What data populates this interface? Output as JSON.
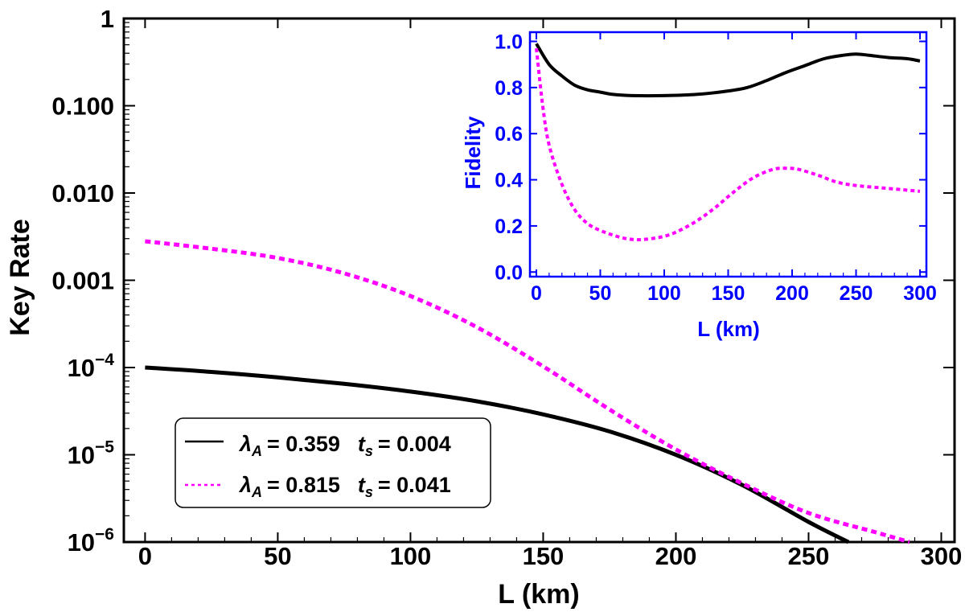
{
  "chart_data": [
    {
      "type": "line",
      "name": "main",
      "xlabel": "L (km)",
      "ylabel": "Key Rate",
      "yscale": "log",
      "xlim": [
        -8,
        305
      ],
      "ylim": [
        1e-06,
        1
      ],
      "x_ticks": [
        0,
        50,
        100,
        150,
        200,
        250,
        300
      ],
      "x_tick_labels": [
        "0",
        "50",
        "100",
        "150",
        "200",
        "250",
        "300"
      ],
      "y_ticks": [
        {
          "value": 1,
          "label": "1"
        },
        {
          "value": 0.1,
          "label": "0.100"
        },
        {
          "value": 0.01,
          "label": "0.010"
        },
        {
          "value": 0.001,
          "label": "0.001"
        },
        {
          "value": 0.0001,
          "mantissa": "10",
          "exponent": "−4"
        },
        {
          "value": 1e-05,
          "mantissa": "10",
          "exponent": "−5"
        },
        {
          "value": 1e-06,
          "mantissa": "10",
          "exponent": "−6"
        }
      ],
      "legend": {
        "position": "bottom-left",
        "entries": [
          {
            "lambda_symbol": "λ",
            "lambda_sub": "A",
            "lambda_value": "= 0.359",
            "t_symbol": "t",
            "t_sub": "s",
            "t_value": "= 0.004"
          },
          {
            "lambda_symbol": "λ",
            "lambda_sub": "A",
            "lambda_value": "= 0.815",
            "t_symbol": "t",
            "t_sub": "s",
            "t_value": "= 0.041"
          }
        ]
      },
      "series": [
        {
          "name": "λA = 0.359, ts = 0.004",
          "color": "#000000",
          "dash": "solid",
          "x": [
            0,
            25,
            50,
            75,
            100,
            125,
            150,
            175,
            200,
            225,
            250,
            265
          ],
          "y": [
            0.0001,
            8.9e-05,
            7.7e-05,
            6.5e-05,
            5.3e-05,
            4.1e-05,
            2.9e-05,
            1.85e-05,
            1e-05,
            4.5e-06,
            1.7e-06,
            1e-06
          ]
        },
        {
          "name": "λA = 0.815, ts = 0.041",
          "color": "#ff00ff",
          "dash": "dotted",
          "x": [
            0,
            25,
            50,
            75,
            100,
            125,
            150,
            175,
            200,
            225,
            250,
            275,
            288
          ],
          "y": [
            0.0028,
            0.0023,
            0.0018,
            0.0012,
            0.00066,
            0.00029,
            0.000103,
            3.3e-05,
            1.15e-05,
            4.7e-06,
            2.15e-06,
            1.3e-06,
            1e-06
          ]
        }
      ]
    },
    {
      "type": "line",
      "name": "inset",
      "xlabel": "L (km)",
      "ylabel": "Fidelity",
      "xlim": [
        -5,
        305
      ],
      "ylim": [
        -0.02,
        1.04
      ],
      "x_ticks": [
        0,
        50,
        100,
        150,
        200,
        250,
        300
      ],
      "x_tick_labels": [
        "0",
        "50",
        "100",
        "150",
        "200",
        "250",
        "300"
      ],
      "y_ticks": [
        0.0,
        0.2,
        0.4,
        0.6,
        0.8,
        1.0
      ],
      "y_tick_labels": [
        "0.0",
        "0.2",
        "0.4",
        "0.6",
        "0.8",
        "1.0"
      ],
      "axis_color": "#0000ff",
      "series": [
        {
          "name": "λA = 0.359, ts = 0.004",
          "color": "#000000",
          "dash": "solid",
          "x": [
            0,
            10,
            20,
            30,
            40,
            50,
            60,
            75,
            100,
            125,
            150,
            165,
            180,
            195,
            210,
            225,
            240,
            250,
            260,
            275,
            290,
            300
          ],
          "y": [
            0.99,
            0.9,
            0.85,
            0.81,
            0.79,
            0.78,
            0.77,
            0.765,
            0.765,
            0.77,
            0.785,
            0.8,
            0.83,
            0.865,
            0.895,
            0.925,
            0.94,
            0.945,
            0.94,
            0.93,
            0.925,
            0.915
          ]
        },
        {
          "name": "λA = 0.815, ts = 0.041",
          "color": "#ff00ff",
          "dash": "dotted",
          "x": [
            0,
            5,
            10,
            20,
            30,
            40,
            50,
            60,
            70,
            80,
            90,
            100,
            110,
            125,
            140,
            155,
            170,
            185,
            195,
            205,
            220,
            235,
            250,
            270,
            290,
            300
          ],
          "y": [
            0.97,
            0.72,
            0.55,
            0.38,
            0.27,
            0.21,
            0.18,
            0.16,
            0.145,
            0.14,
            0.145,
            0.155,
            0.175,
            0.22,
            0.28,
            0.35,
            0.41,
            0.445,
            0.45,
            0.445,
            0.42,
            0.39,
            0.375,
            0.365,
            0.355,
            0.35
          ]
        }
      ]
    }
  ]
}
